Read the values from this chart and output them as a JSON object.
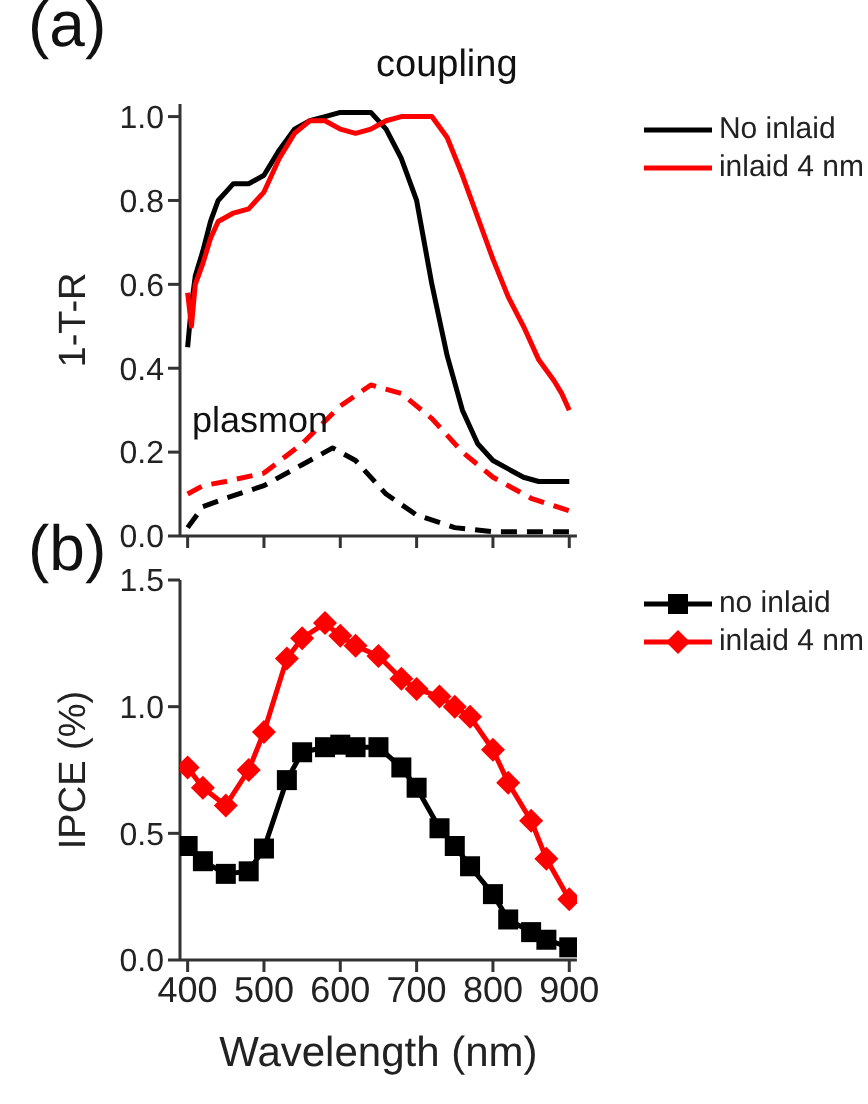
{
  "chart_data": [
    {
      "type": "line",
      "ylabel": "1-T-R",
      "xlim": [
        390,
        910
      ],
      "xticks": [
        400,
        500,
        600,
        700,
        800,
        900
      ],
      "ylim": [
        0,
        1.03
      ],
      "yticks": [
        {
          "value": 0,
          "label": "0.0"
        },
        {
          "value": 0.2,
          "label": "0.2"
        },
        {
          "value": 0.4,
          "label": "0.4"
        },
        {
          "value": 0.6,
          "label": "0.6"
        },
        {
          "value": 0.8,
          "label": "0.8"
        },
        {
          "value": 1,
          "label": "1.0"
        }
      ],
      "tick_labels": "y",
      "legend": "top right",
      "marker": "none",
      "annotations": [
        "(a)",
        "coupling",
        "plasmon"
      ],
      "series": [
        {
          "name": "No inlaid",
          "color": "#000000",
          "line_style": "solid",
          "x": [
            400,
            405,
            410,
            420,
            430,
            440,
            450,
            460,
            480,
            500,
            520,
            540,
            560,
            580,
            600,
            620,
            640,
            660,
            680,
            700,
            720,
            740,
            760,
            780,
            800,
            820,
            840,
            860,
            880,
            900
          ],
          "values": [
            0.45,
            0.55,
            0.62,
            0.68,
            0.75,
            0.8,
            0.82,
            0.84,
            0.84,
            0.86,
            0.92,
            0.97,
            0.99,
            1.0,
            1.01,
            1.01,
            1.01,
            0.97,
            0.9,
            0.8,
            0.6,
            0.43,
            0.3,
            0.22,
            0.18,
            0.16,
            0.14,
            0.13,
            0.13,
            0.13
          ]
        },
        {
          "name": "inlaid 4 nm",
          "color": "#ff0000",
          "line_style": "solid",
          "x": [
            400,
            405,
            410,
            420,
            430,
            440,
            460,
            480,
            500,
            520,
            540,
            560,
            580,
            600,
            620,
            640,
            660,
            680,
            700,
            720,
            740,
            760,
            780,
            800,
            820,
            840,
            860,
            880,
            890,
            900
          ],
          "values": [
            0.58,
            0.5,
            0.6,
            0.65,
            0.71,
            0.75,
            0.77,
            0.78,
            0.82,
            0.9,
            0.96,
            0.99,
            0.99,
            0.97,
            0.96,
            0.97,
            0.99,
            1.0,
            1.0,
            1.0,
            0.95,
            0.86,
            0.76,
            0.66,
            0.57,
            0.5,
            0.42,
            0.37,
            0.34,
            0.3
          ]
        },
        {
          "color": "#ff0000",
          "line_style": "dashed",
          "x": [
            400,
            420,
            450,
            500,
            550,
            600,
            640,
            680,
            720,
            760,
            800,
            850,
            900
          ],
          "values": [
            0.1,
            0.12,
            0.13,
            0.15,
            0.22,
            0.31,
            0.36,
            0.34,
            0.28,
            0.2,
            0.14,
            0.09,
            0.06
          ]
        },
        {
          "color": "#000000",
          "line_style": "dashed",
          "x": [
            400,
            420,
            450,
            500,
            550,
            590,
            620,
            660,
            700,
            750,
            800,
            900
          ],
          "values": [
            0.02,
            0.07,
            0.09,
            0.12,
            0.17,
            0.21,
            0.18,
            0.1,
            0.05,
            0.02,
            0.01,
            0.01
          ]
        }
      ]
    },
    {
      "type": "line",
      "xlabel": "Wavelength (nm)",
      "ylabel": "IPCE (%)",
      "xlim": [
        390,
        910
      ],
      "xticks": [
        400,
        500,
        600,
        700,
        800,
        900
      ],
      "ylim": [
        0,
        1.5
      ],
      "yticks": [
        {
          "value": 0,
          "label": "0.0"
        },
        {
          "value": 0.5,
          "label": "0.5"
        },
        {
          "value": 1,
          "label": "1.0"
        },
        {
          "value": 1.5,
          "label": "1.5"
        }
      ],
      "legend": "top right",
      "annotations": [
        "(b)"
      ],
      "series": [
        {
          "name": "no inlaid",
          "color": "#000000",
          "marker": "square",
          "x": [
            400,
            420,
            450,
            480,
            500,
            530,
            550,
            580,
            600,
            620,
            650,
            680,
            700,
            730,
            750,
            770,
            800,
            820,
            850,
            870,
            900
          ],
          "values": [
            0.45,
            0.39,
            0.34,
            0.35,
            0.44,
            0.71,
            0.82,
            0.84,
            0.85,
            0.84,
            0.84,
            0.76,
            0.68,
            0.52,
            0.45,
            0.37,
            0.26,
            0.16,
            0.11,
            0.08,
            0.05
          ]
        },
        {
          "name": "inlaid 4 nm",
          "color": "#ff0000",
          "marker": "diamond",
          "x": [
            400,
            420,
            450,
            480,
            500,
            530,
            550,
            580,
            600,
            620,
            650,
            680,
            700,
            730,
            750,
            770,
            800,
            820,
            850,
            870,
            900
          ],
          "values": [
            0.76,
            0.68,
            0.61,
            0.75,
            0.9,
            1.19,
            1.27,
            1.33,
            1.28,
            1.24,
            1.2,
            1.11,
            1.07,
            1.04,
            1.0,
            0.96,
            0.83,
            0.7,
            0.55,
            0.4,
            0.24
          ]
        }
      ]
    }
  ]
}
